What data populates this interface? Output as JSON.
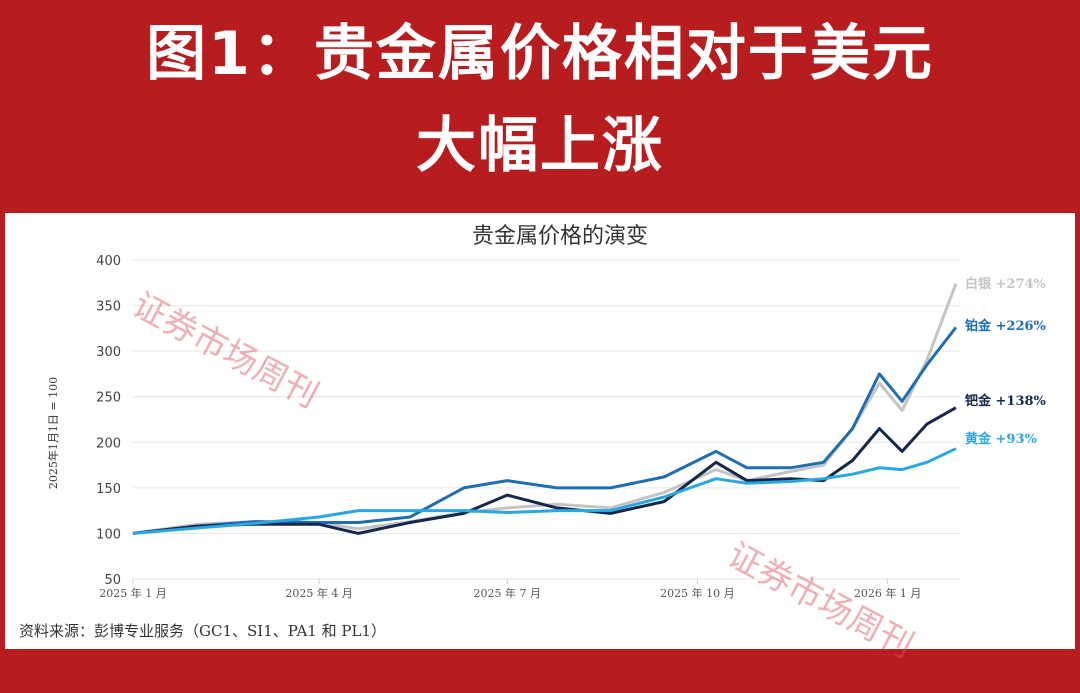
{
  "banner": {
    "line1": "图1：贵金属价格相对于美元",
    "line2": "大幅上涨"
  },
  "watermark": "证券市场周刊",
  "source": "资料来源：彭博专业服务（GC1、SI1、PA1 和 PL1）",
  "chart_data": {
    "type": "line",
    "title": "贵金属价格的演变",
    "ylabel": "2025年1月1日 = 100",
    "xlabel": "",
    "ylim": [
      50,
      400
    ],
    "yticks": [
      50,
      100,
      150,
      200,
      250,
      300,
      350,
      400
    ],
    "xticks": [
      {
        "date": "2025-01-01",
        "label": "2025 年 1 月"
      },
      {
        "date": "2025-04-01",
        "label": "2025 年 4 月"
      },
      {
        "date": "2025-07-01",
        "label": "2025 年 7 月"
      },
      {
        "date": "2025-10-01",
        "label": "2025 年 10 月"
      },
      {
        "date": "2026-01-01",
        "label": "2026 年 1 月"
      }
    ],
    "xlim": [
      "2025-01-01",
      "2026-02-05"
    ],
    "grid": "horizontal",
    "x": [
      "2025-01-01",
      "2025-02-01",
      "2025-03-01",
      "2025-04-01",
      "2025-04-20",
      "2025-05-15",
      "2025-06-10",
      "2025-07-01",
      "2025-07-25",
      "2025-08-20",
      "2025-09-15",
      "2025-10-10",
      "2025-10-25",
      "2025-11-15",
      "2025-12-01",
      "2025-12-15",
      "2025-12-28",
      "2026-01-08",
      "2026-01-20",
      "2026-02-03"
    ],
    "series": [
      {
        "name": "白银",
        "label": "白银 +274%",
        "color": "#c4c4c4",
        "values": [
          100,
          110,
          113,
          112,
          105,
          113,
          123,
          128,
          132,
          128,
          145,
          170,
          158,
          168,
          175,
          215,
          265,
          235,
          290,
          374
        ]
      },
      {
        "name": "铂金",
        "label": "铂金 +226%",
        "color": "#1f6db3",
        "values": [
          100,
          108,
          113,
          112,
          112,
          118,
          150,
          158,
          150,
          150,
          162,
          190,
          172,
          172,
          178,
          215,
          275,
          245,
          285,
          326
        ]
      },
      {
        "name": "钯金",
        "label": "钯金 +138%",
        "color": "#13284c",
        "values": [
          100,
          108,
          110,
          110,
          100,
          112,
          122,
          142,
          128,
          122,
          135,
          178,
          158,
          160,
          158,
          180,
          215,
          190,
          220,
          238
        ]
      },
      {
        "name": "黄金",
        "label": "黄金 +93%",
        "color": "#2aa7e2",
        "values": [
          100,
          106,
          111,
          118,
          125,
          125,
          125,
          123,
          125,
          125,
          140,
          160,
          155,
          157,
          160,
          165,
          172,
          170,
          178,
          193
        ]
      }
    ]
  }
}
